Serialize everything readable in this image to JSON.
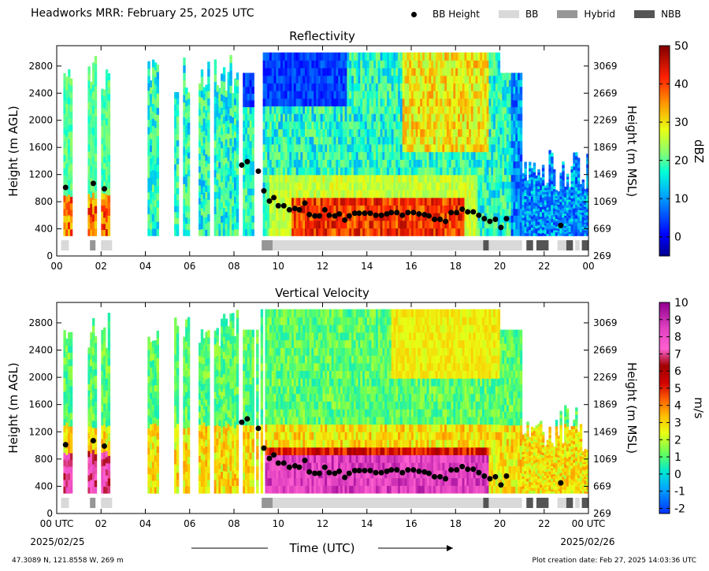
{
  "page": {
    "title": "Headworks MRR:  February 25, 2025 UTC",
    "location": "47.3089 N, 121.8558 W, 269 m",
    "creation": "Plot creation date: Feb 27, 2025 14:03:36 UTC",
    "xlabel": "Time (UTC)",
    "start_date": "2025/02/25",
    "end_date": "2025/02/26"
  },
  "legend": [
    {
      "name": "BB Height",
      "kind": "dot",
      "color": "#000000"
    },
    {
      "name": "BB",
      "kind": "box",
      "color": "#d9d9d9"
    },
    {
      "name": "Hybrid",
      "kind": "box",
      "color": "#969696"
    },
    {
      "name": "NBB",
      "kind": "box",
      "color": "#555555"
    }
  ],
  "chart_data": [
    {
      "type": "heatmap",
      "title": "Reflectivity",
      "ylabel": "Height (m AGL)",
      "ylabel_right": "Height (m MSL)",
      "colorbar_label": "dBZ",
      "x_ticks": [
        "00",
        "02",
        "04",
        "06",
        "08",
        "10",
        "12",
        "14",
        "16",
        "18",
        "20",
        "22",
        "00"
      ],
      "y_ticks": [
        0,
        400,
        800,
        1200,
        1600,
        2000,
        2400,
        2800
      ],
      "y_ticks_right": [
        269,
        669,
        1069,
        1469,
        1869,
        2269,
        2669,
        3069
      ],
      "xlim": [
        0,
        24
      ],
      "ylim": [
        0,
        3100
      ],
      "colorbar": {
        "min": -5,
        "max": 50,
        "ticks": [
          0,
          10,
          20,
          30,
          40,
          50
        ]
      }
    },
    {
      "type": "heatmap",
      "title": "Vertical Velocity",
      "ylabel": "Height (m AGL)",
      "ylabel_right": "Height (m MSL)",
      "colorbar_label": "m/s",
      "x_ticks": [
        "00 UTC",
        "02",
        "04",
        "06",
        "08",
        "10",
        "12",
        "14",
        "16",
        "18",
        "20",
        "22",
        "00 UTC"
      ],
      "y_ticks": [
        0,
        400,
        800,
        1200,
        1600,
        2000,
        2400,
        2800
      ],
      "y_ticks_right": [
        269,
        669,
        1069,
        1469,
        1869,
        2269,
        2669,
        3069
      ],
      "xlim": [
        0,
        24
      ],
      "ylim": [
        0,
        3100
      ],
      "colorbar": {
        "min": -2.3,
        "max": 10,
        "ticks": [
          -2,
          -1,
          0,
          1,
          2,
          3,
          4,
          5,
          6,
          7,
          8,
          9,
          10
        ]
      }
    }
  ],
  "bb_points": [
    {
      "t": 0.4,
      "h": 1010
    },
    {
      "t": 1.65,
      "h": 1070
    },
    {
      "t": 2.15,
      "h": 990
    },
    {
      "t": 8.35,
      "h": 1340
    },
    {
      "t": 8.6,
      "h": 1390
    },
    {
      "t": 9.1,
      "h": 1250
    },
    {
      "t": 9.35,
      "h": 960
    },
    {
      "t": 9.6,
      "h": 810
    },
    {
      "t": 9.8,
      "h": 860
    },
    {
      "t": 10.0,
      "h": 740
    },
    {
      "t": 10.25,
      "h": 740
    },
    {
      "t": 10.5,
      "h": 680
    },
    {
      "t": 10.75,
      "h": 700
    },
    {
      "t": 10.95,
      "h": 680
    },
    {
      "t": 11.2,
      "h": 780
    },
    {
      "t": 11.4,
      "h": 610
    },
    {
      "t": 11.65,
      "h": 590
    },
    {
      "t": 11.85,
      "h": 590
    },
    {
      "t": 12.1,
      "h": 680
    },
    {
      "t": 12.3,
      "h": 600
    },
    {
      "t": 12.55,
      "h": 590
    },
    {
      "t": 12.75,
      "h": 620
    },
    {
      "t": 13.0,
      "h": 530
    },
    {
      "t": 13.2,
      "h": 590
    },
    {
      "t": 13.45,
      "h": 630
    },
    {
      "t": 13.65,
      "h": 630
    },
    {
      "t": 13.9,
      "h": 630
    },
    {
      "t": 14.15,
      "h": 630
    },
    {
      "t": 14.4,
      "h": 600
    },
    {
      "t": 14.65,
      "h": 600
    },
    {
      "t": 14.9,
      "h": 620
    },
    {
      "t": 15.1,
      "h": 640
    },
    {
      "t": 15.35,
      "h": 640
    },
    {
      "t": 15.6,
      "h": 600
    },
    {
      "t": 15.85,
      "h": 640
    },
    {
      "t": 16.1,
      "h": 640
    },
    {
      "t": 16.35,
      "h": 620
    },
    {
      "t": 16.6,
      "h": 610
    },
    {
      "t": 16.8,
      "h": 590
    },
    {
      "t": 17.05,
      "h": 540
    },
    {
      "t": 17.3,
      "h": 540
    },
    {
      "t": 17.55,
      "h": 510
    },
    {
      "t": 17.8,
      "h": 640
    },
    {
      "t": 18.05,
      "h": 640
    },
    {
      "t": 18.3,
      "h": 690
    },
    {
      "t": 18.55,
      "h": 650
    },
    {
      "t": 18.8,
      "h": 650
    },
    {
      "t": 19.05,
      "h": 600
    },
    {
      "t": 19.3,
      "h": 550
    },
    {
      "t": 19.55,
      "h": 510
    },
    {
      "t": 19.8,
      "h": 540
    },
    {
      "t": 20.05,
      "h": 420
    },
    {
      "t": 20.3,
      "h": 550
    },
    {
      "t": 22.75,
      "h": 450
    }
  ],
  "bb_bars": [
    {
      "t0": 0.2,
      "t1": 0.55,
      "type": "BB"
    },
    {
      "t0": 1.5,
      "t1": 1.75,
      "type": "Hybrid"
    },
    {
      "t0": 2.0,
      "t1": 2.5,
      "type": "BB"
    },
    {
      "t0": 9.25,
      "t1": 9.75,
      "type": "Hybrid"
    },
    {
      "t0": 9.75,
      "t1": 19.25,
      "type": "BB"
    },
    {
      "t0": 19.25,
      "t1": 19.5,
      "type": "NBB"
    },
    {
      "t0": 19.5,
      "t1": 21.0,
      "type": "BB"
    },
    {
      "t0": 21.2,
      "t1": 21.5,
      "type": "NBB"
    },
    {
      "t0": 21.65,
      "t1": 22.2,
      "type": "NBB"
    },
    {
      "t0": 22.6,
      "t1": 23.0,
      "type": "BB"
    },
    {
      "t0": 23.0,
      "t1": 23.3,
      "type": "NBB"
    },
    {
      "t0": 23.4,
      "t1": 23.6,
      "type": "BB"
    },
    {
      "t0": 23.7,
      "t1": 24.0,
      "type": "NBB"
    }
  ],
  "colors": {
    "BB": "#d9d9d9",
    "Hybrid": "#969696",
    "NBB": "#555555"
  }
}
